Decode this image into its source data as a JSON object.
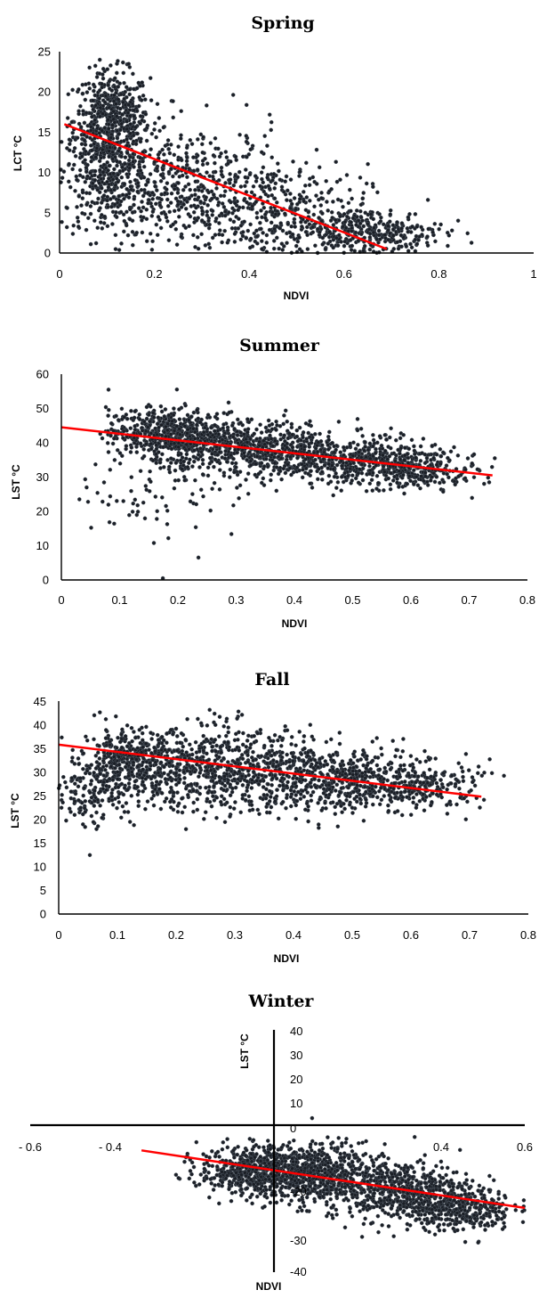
{
  "chart_data": [
    {
      "type": "scatter",
      "title": "Spring",
      "xlabel": "NDVI",
      "ylabel": "LCT °C",
      "xlim": [
        0,
        1
      ],
      "ylim": [
        0,
        25
      ],
      "xticks": [
        "0",
        "0.2",
        "0.4",
        "0.6",
        "0.8",
        "1"
      ],
      "yticks": [
        "0",
        "5",
        "10",
        "15",
        "20",
        "25"
      ],
      "grid": false,
      "trendline": {
        "x": [
          0.01,
          0.69
        ],
        "y": [
          16.0,
          0.5
        ]
      },
      "clusters": [
        {
          "cx": 0.11,
          "cy": 16.5,
          "sx": 0.04,
          "sy": 3.0,
          "n": 550
        },
        {
          "cx": 0.1,
          "cy": 9.0,
          "sx": 0.05,
          "sy": 3.5,
          "n": 350
        },
        {
          "cx": 0.28,
          "cy": 8.0,
          "sx": 0.1,
          "sy": 4.0,
          "n": 450
        },
        {
          "cx": 0.45,
          "cy": 5.0,
          "sx": 0.1,
          "sy": 3.0,
          "n": 350
        },
        {
          "cx": 0.65,
          "cy": 2.5,
          "sx": 0.08,
          "sy": 1.5,
          "n": 350
        }
      ]
    },
    {
      "type": "scatter",
      "title": "Summer",
      "xlabel": "NDVI",
      "ylabel": "LST °C",
      "xlim": [
        0,
        0.8
      ],
      "ylim": [
        0,
        60
      ],
      "xticks": [
        "0",
        "0.1",
        "0.2",
        "0.3",
        "0.4",
        "0.5",
        "0.6",
        "0.7",
        "0.8"
      ],
      "yticks": [
        "0",
        "10",
        "20",
        "30",
        "40",
        "50",
        "60"
      ],
      "grid": false,
      "trendline": {
        "x": [
          0,
          0.74
        ],
        "y": [
          44.5,
          30.5
        ]
      },
      "clusters": [
        {
          "cx": 0.18,
          "cy": 43.0,
          "sx": 0.05,
          "sy": 3.5,
          "n": 500
        },
        {
          "cx": 0.32,
          "cy": 38.5,
          "sx": 0.08,
          "sy": 4.0,
          "n": 600
        },
        {
          "cx": 0.5,
          "cy": 34.5,
          "sx": 0.08,
          "sy": 3.5,
          "n": 500
        },
        {
          "cx": 0.62,
          "cy": 32.0,
          "sx": 0.05,
          "sy": 2.5,
          "n": 200
        },
        {
          "cx": 0.16,
          "cy": 24.0,
          "sx": 0.07,
          "sy": 8.0,
          "n": 70
        }
      ]
    },
    {
      "type": "scatter",
      "title": "Fall",
      "xlabel": "NDVI",
      "ylabel": "LST °C",
      "xlim": [
        0,
        0.8
      ],
      "ylim": [
        0,
        45
      ],
      "xticks": [
        "0",
        "0.1",
        "0.2",
        "0.3",
        "0.4",
        "0.5",
        "0.6",
        "0.7",
        "0.8"
      ],
      "yticks": [
        "0",
        "5",
        "10",
        "15",
        "20",
        "25",
        "30",
        "35",
        "40",
        "45"
      ],
      "grid": false,
      "trendline": {
        "x": [
          0,
          0.72
        ],
        "y": [
          35.8,
          24.8
        ]
      },
      "clusters": [
        {
          "cx": 0.12,
          "cy": 32.0,
          "sx": 0.04,
          "sy": 3.5,
          "n": 400
        },
        {
          "cx": 0.05,
          "cy": 26.0,
          "sx": 0.04,
          "sy": 4.0,
          "n": 150
        },
        {
          "cx": 0.28,
          "cy": 30.5,
          "sx": 0.08,
          "sy": 4.5,
          "n": 650
        },
        {
          "cx": 0.47,
          "cy": 28.5,
          "sx": 0.08,
          "sy": 3.5,
          "n": 550
        },
        {
          "cx": 0.62,
          "cy": 27.0,
          "sx": 0.05,
          "sy": 2.5,
          "n": 200
        }
      ]
    },
    {
      "type": "scatter",
      "title": "Winter",
      "xlabel": "NDVI",
      "ylabel": "LST °C",
      "xlim": [
        -0.6,
        0.6
      ],
      "ylim": [
        -40,
        40
      ],
      "xticks": [
        "- 0.6",
        "- 0.4",
        "",
        "",
        "",
        "0.4",
        "0.6"
      ],
      "yticks": [
        "-40",
        "-30",
        "-20",
        "",
        "0",
        "10",
        "20",
        "30",
        "40"
      ],
      "grid": false,
      "trendline": {
        "x": [
          -0.33,
          0.6
        ],
        "y": [
          0.5,
          -18.5
        ]
      },
      "clusters": [
        {
          "cx": -0.05,
          "cy": -6.0,
          "sx": 0.07,
          "sy": 4.0,
          "n": 550
        },
        {
          "cx": 0.1,
          "cy": -7.5,
          "sx": 0.08,
          "sy": 5.0,
          "n": 600
        },
        {
          "cx": 0.3,
          "cy": -13.0,
          "sx": 0.09,
          "sy": 5.0,
          "n": 600
        },
        {
          "cx": 0.45,
          "cy": -19.0,
          "sx": 0.06,
          "sy": 3.5,
          "n": 300
        }
      ]
    }
  ]
}
